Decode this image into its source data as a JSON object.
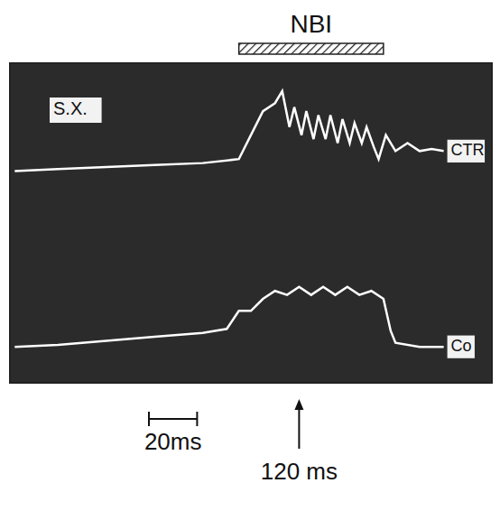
{
  "chart_data": {
    "type": "line",
    "xlim": [
      0,
      200
    ],
    "xticks": [
      0,
      20,
      40,
      60,
      80,
      100,
      120,
      140,
      160,
      180,
      200
    ],
    "ylim": [
      0,
      8
    ],
    "yticks": [
      0,
      1,
      2,
      3,
      4,
      5,
      6,
      7,
      8
    ],
    "grid": true,
    "tick_labels": false,
    "series": [
      {
        "name": "CTR",
        "color": "#ffffff",
        "line_style": "solid",
        "marker": "none",
        "x": [
          2,
          20,
          40,
          60,
          80,
          95,
          100,
          105,
          110,
          113,
          116,
          118,
          121,
          123,
          126,
          128,
          131,
          133,
          136,
          138,
          141,
          143,
          146,
          148,
          151,
          153,
          156,
          160,
          165,
          170,
          175,
          180
        ],
        "values": [
          5.3,
          5.35,
          5.4,
          5.45,
          5.5,
          5.6,
          6.2,
          6.8,
          7.0,
          7.3,
          6.4,
          6.9,
          6.2,
          6.8,
          6.1,
          6.7,
          6.1,
          6.7,
          6.0,
          6.6,
          6.0,
          6.5,
          6.0,
          6.4,
          5.9,
          5.6,
          6.2,
          5.8,
          6.0,
          5.8,
          5.85,
          5.8
        ]
      },
      {
        "name": "Co",
        "color": "#ffffff",
        "line_style": "solid",
        "marker": "none",
        "x": [
          2,
          20,
          40,
          60,
          80,
          90,
          95,
          100,
          105,
          110,
          115,
          120,
          125,
          130,
          135,
          140,
          145,
          150,
          155,
          158,
          160,
          170,
          180
        ],
        "values": [
          0.9,
          0.95,
          1.05,
          1.15,
          1.25,
          1.35,
          1.8,
          1.8,
          2.1,
          2.3,
          2.2,
          2.4,
          2.2,
          2.4,
          2.2,
          2.4,
          2.2,
          2.3,
          2.1,
          1.3,
          1.0,
          0.9,
          0.9
        ]
      }
    ],
    "annotations": [
      {
        "text": "S.X."
      },
      {
        "text": "NBI",
        "start": 95,
        "end": 155
      },
      {
        "text": "20ms",
        "length": 20
      },
      {
        "text": "120 ms",
        "x": 120
      }
    ]
  }
}
